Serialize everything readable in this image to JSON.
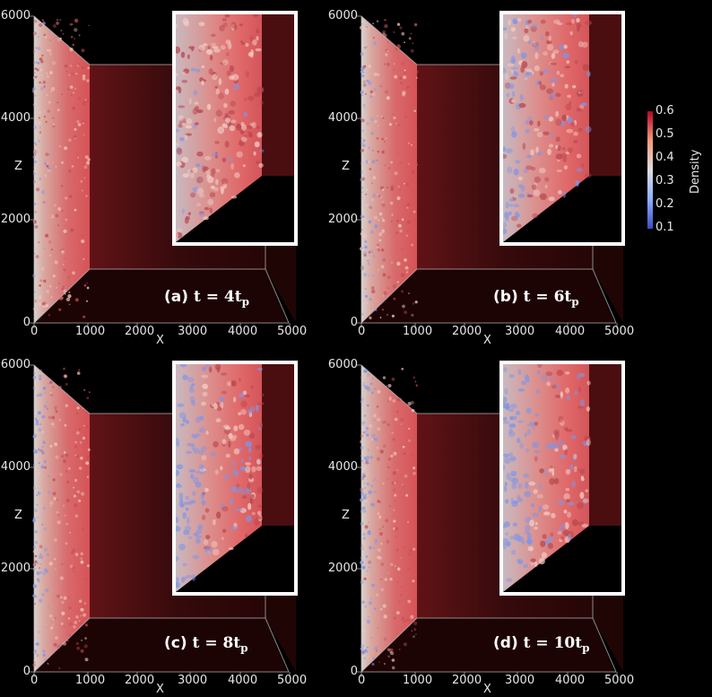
{
  "panels": [
    {
      "label": "(a)",
      "math": "t = 4t",
      "sub": "p"
    },
    {
      "label": "(b)",
      "math": "t = 6t",
      "sub": "p"
    },
    {
      "label": "(c)",
      "math": "t = 8t",
      "sub": "p"
    },
    {
      "label": "(d)",
      "math": "t = 10t",
      "sub": "p"
    }
  ],
  "axes": {
    "x_label": "X",
    "z_label": "Z",
    "x_ticks": [
      "0",
      "1000",
      "2000",
      "3000",
      "4000",
      "5000"
    ],
    "z_ticks": [
      "6000",
      "4000",
      "2000",
      "0"
    ]
  },
  "colorbar": {
    "title": "Density",
    "ticks": [
      "0.6",
      "0.5",
      "0.4",
      "0.3",
      "0.2",
      "0.1"
    ],
    "range": [
      0.1,
      0.6
    ],
    "colors": [
      "#3b4cc0",
      "#dddddd",
      "#b40426"
    ]
  }
}
